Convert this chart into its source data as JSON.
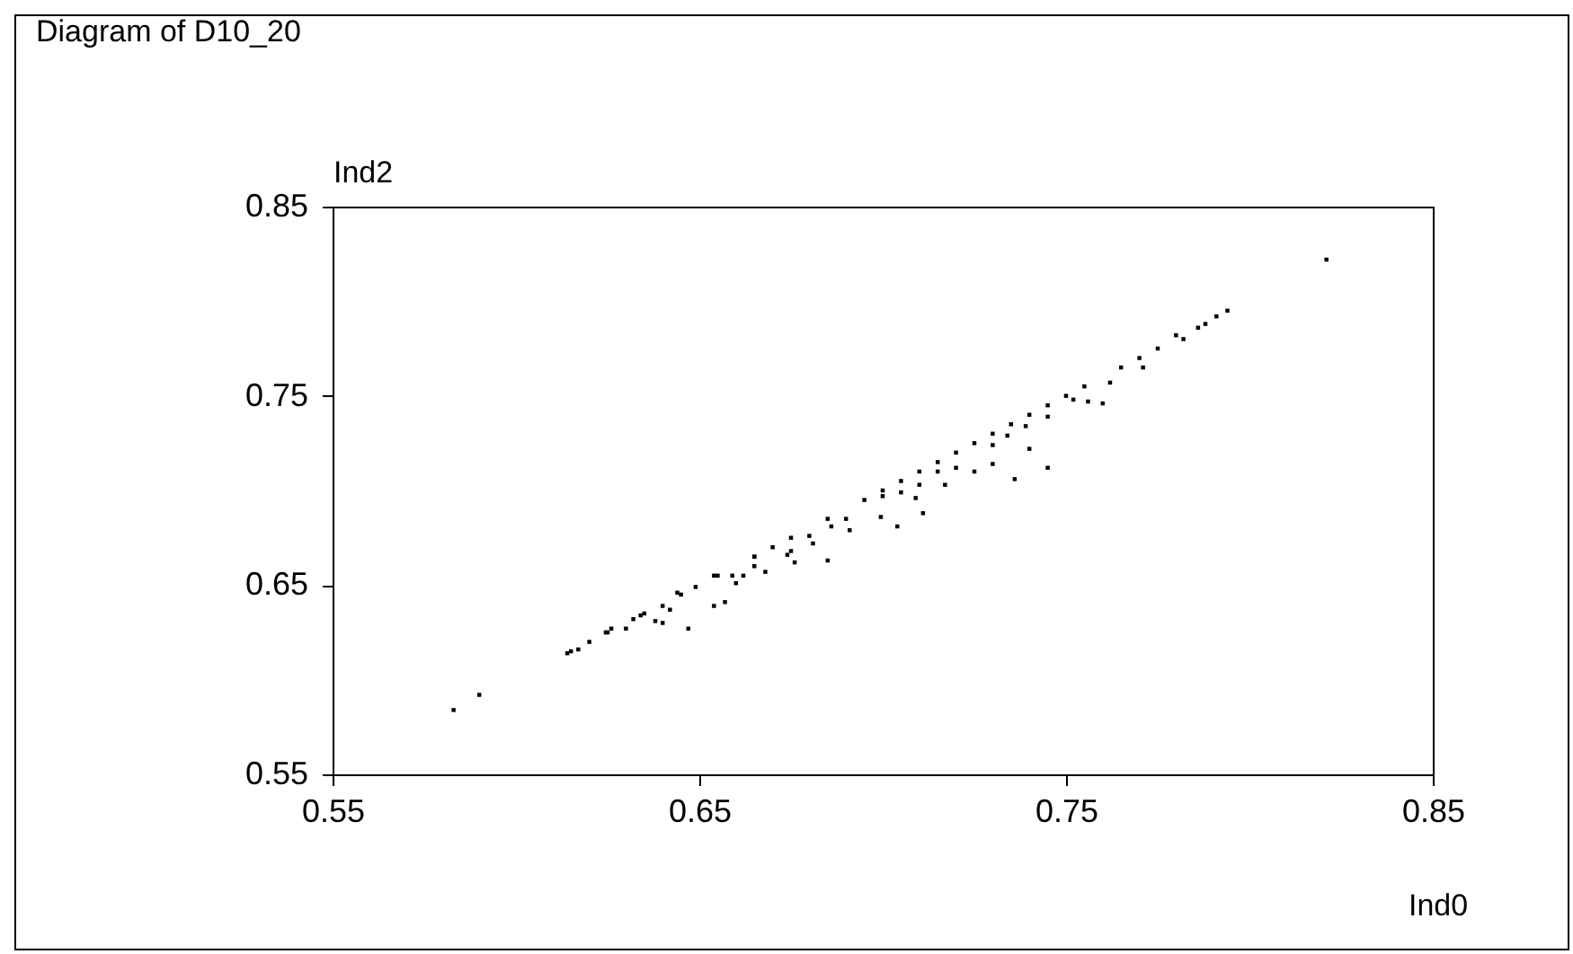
{
  "chart_data": {
    "type": "scatter",
    "title": "Diagram of D10_20",
    "xlabel": "Ind0",
    "ylabel": "Ind2",
    "xlim": [
      0.55,
      0.85
    ],
    "ylim": [
      0.55,
      0.85
    ],
    "xticks": [
      0.55,
      0.65,
      0.75,
      0.85
    ],
    "yticks": [
      0.55,
      0.65,
      0.75,
      0.85
    ],
    "grid": false,
    "marker": "square",
    "series": [
      {
        "color": "#000000",
        "x": [
          0.583,
          0.59,
          0.614,
          0.617,
          0.62,
          0.6245,
          0.626,
          0.63,
          0.632,
          0.634,
          0.638,
          0.64,
          0.64,
          0.642,
          0.644,
          0.647,
          0.649,
          0.654,
          0.654,
          0.657,
          0.659,
          0.66,
          0.662,
          0.668,
          0.665,
          0.67,
          0.674,
          0.676,
          0.685,
          0.681,
          0.686,
          0.691,
          0.6995,
          0.704,
          0.711,
          0.709,
          0.717,
          0.725,
          0.73,
          0.736,
          0.745,
          0.74,
          0.734,
          0.739,
          0.745,
          0.752,
          0.756,
          0.76,
          0.762,
          0.771,
          0.782,
          0.78,
          0.786,
          0.791,
          0.794,
          0.821,
          0.675,
          0.68,
          0.69,
          0.7,
          0.705,
          0.71,
          0.715,
          0.72,
          0.73,
          0.665,
          0.615,
          0.625,
          0.635,
          0.645,
          0.655,
          0.665,
          0.675,
          0.685,
          0.695,
          0.7,
          0.705,
          0.71,
          0.715,
          0.72,
          0.725,
          0.73,
          0.735,
          0.74,
          0.745,
          0.75,
          0.755,
          0.765,
          0.77,
          0.775,
          0.788
        ],
        "values": [
          0.584,
          0.592,
          0.614,
          0.616,
          0.62,
          0.625,
          0.627,
          0.627,
          0.632,
          0.634,
          0.631,
          0.63,
          0.639,
          0.637,
          0.646,
          0.627,
          0.649,
          0.639,
          0.655,
          0.641,
          0.655,
          0.651,
          0.655,
          0.657,
          0.665,
          0.67,
          0.666,
          0.662,
          0.663,
          0.672,
          0.681,
          0.679,
          0.686,
          0.681,
          0.688,
          0.696,
          0.703,
          0.71,
          0.714,
          0.706,
          0.712,
          0.722,
          0.729,
          0.734,
          0.739,
          0.748,
          0.747,
          0.746,
          0.757,
          0.765,
          0.78,
          0.782,
          0.786,
          0.792,
          0.795,
          0.822,
          0.668,
          0.676,
          0.685,
          0.697,
          0.699,
          0.703,
          0.71,
          0.712,
          0.724,
          0.66,
          0.615,
          0.625,
          0.635,
          0.645,
          0.655,
          0.665,
          0.675,
          0.685,
          0.695,
          0.7,
          0.705,
          0.71,
          0.715,
          0.72,
          0.725,
          0.73,
          0.735,
          0.74,
          0.745,
          0.75,
          0.755,
          0.765,
          0.77,
          0.775,
          0.788
        ]
      }
    ]
  }
}
